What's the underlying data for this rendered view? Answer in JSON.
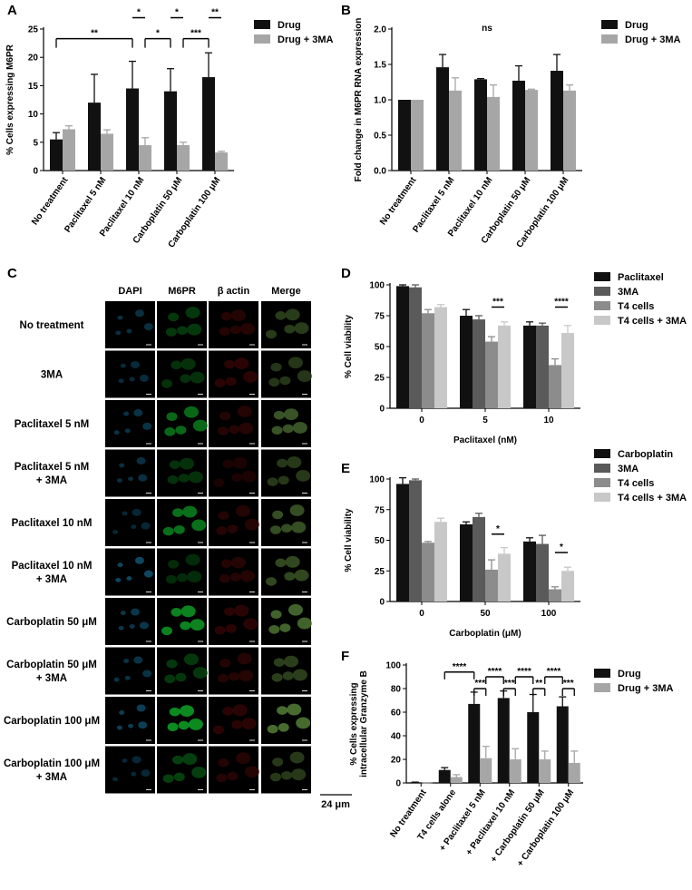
{
  "panel_letters": [
    "A",
    "B",
    "C",
    "D",
    "E",
    "F"
  ],
  "colors": {
    "drug": "#111111",
    "drug_3ma": "#a6a6a6",
    "paclitaxel": "#111111",
    "three_ma": "#5a5a5a",
    "t4": "#8c8c8c",
    "t4_3ma": "#c8c8c8"
  },
  "chart_data": [
    {
      "id": "A",
      "type": "bar",
      "ylabel": "% Cells expressing M6PR",
      "ylim": [
        0,
        25
      ],
      "yticks": [
        0,
        5,
        10,
        15,
        20,
        25
      ],
      "categories": [
        "No treatment",
        "Paclitaxel 5 nM",
        "Paclitaxel 10 nM",
        "Carboplatin 50 μM",
        "Carboplatin 100 μM"
      ],
      "series": [
        {
          "name": "Drug",
          "color": "#111111",
          "values": [
            5.5,
            12.0,
            14.5,
            14.0,
            16.5
          ],
          "errors": [
            1.2,
            5.0,
            4.8,
            4.0,
            4.3
          ]
        },
        {
          "name": "Drug + 3MA",
          "color": "#a6a6a6",
          "values": [
            7.3,
            6.5,
            4.5,
            4.5,
            3.2
          ],
          "errors": [
            0.6,
            0.7,
            1.3,
            0.5,
            0.2
          ]
        }
      ],
      "legend_position": "top-right",
      "significance": [
        {
          "label": "**",
          "from": [
            0,
            0
          ],
          "to": [
            2,
            0
          ],
          "y": 23.3
        },
        {
          "label": "*",
          "from": [
            2,
            0
          ],
          "to": [
            2,
            1
          ],
          "y": 27.0
        },
        {
          "label": "*",
          "from": [
            2,
            1
          ],
          "to": [
            3,
            0
          ],
          "y": 23.3
        },
        {
          "label": "*",
          "from": [
            3,
            0
          ],
          "to": [
            3,
            1
          ],
          "y": 27.0
        },
        {
          "label": "***",
          "from": [
            3,
            1
          ],
          "to": [
            4,
            0
          ],
          "y": 23.3
        },
        {
          "label": "**",
          "from": [
            4,
            0
          ],
          "to": [
            4,
            1
          ],
          "y": 27.0
        }
      ]
    },
    {
      "id": "B",
      "type": "bar",
      "ylabel": "Fold change in M6PR RNA expression",
      "ylim": [
        0,
        2.0
      ],
      "yticks": [
        0.0,
        0.5,
        1.0,
        1.5,
        2.0
      ],
      "categories": [
        "No treatment",
        "Paclitaxel 5 nM",
        "Paclitaxel 10 nM",
        "Carboplatin 50 μM",
        "Carboplatin 100 μM"
      ],
      "series": [
        {
          "name": "Drug",
          "color": "#111111",
          "values": [
            1.0,
            1.46,
            1.29,
            1.27,
            1.41
          ],
          "errors": [
            0.0,
            0.18,
            0.01,
            0.21,
            0.23
          ]
        },
        {
          "name": "Drug + 3MA",
          "color": "#a6a6a6",
          "values": [
            1.0,
            1.13,
            1.04,
            1.14,
            1.13
          ],
          "errors": [
            0.0,
            0.18,
            0.17,
            0.01,
            0.08
          ]
        }
      ],
      "legend_position": "top-right",
      "annotation": "ns"
    },
    {
      "id": "D",
      "type": "bar",
      "xlabel": "Paclitaxel (nM)",
      "ylabel": "% Cell viability",
      "ylim": [
        0,
        100
      ],
      "yticks": [
        0,
        25,
        50,
        75,
        100
      ],
      "categories": [
        "0",
        "5",
        "10"
      ],
      "series": [
        {
          "name": "Paclitaxel",
          "color": "#111111",
          "values": [
            99,
            75,
            67
          ],
          "errors": [
            1,
            5,
            3
          ]
        },
        {
          "name": "3MA",
          "color": "#5a5a5a",
          "values": [
            98,
            72,
            67
          ],
          "errors": [
            2,
            3,
            2
          ]
        },
        {
          "name": "T4 cells",
          "color": "#8c8c8c",
          "values": [
            77,
            54,
            35
          ],
          "errors": [
            3,
            4,
            5
          ]
        },
        {
          "name": "T4 cells + 3MA",
          "color": "#c8c8c8",
          "values": [
            82,
            67,
            61
          ],
          "errors": [
            2,
            3,
            6
          ]
        }
      ],
      "legend_position": "top-right",
      "significance": [
        {
          "label": "***",
          "from": [
            1,
            2
          ],
          "to": [
            1,
            3
          ],
          "y": 82
        },
        {
          "label": "****",
          "from": [
            2,
            2
          ],
          "to": [
            2,
            3
          ],
          "y": 82
        }
      ]
    },
    {
      "id": "E",
      "type": "bar",
      "xlabel": "Carboplatin (μM)",
      "ylabel": "% Cell viability",
      "ylim": [
        0,
        100
      ],
      "yticks": [
        0,
        25,
        50,
        75,
        100
      ],
      "categories": [
        "0",
        "50",
        "100"
      ],
      "series": [
        {
          "name": "Carboplatin",
          "color": "#111111",
          "values": [
            96,
            63,
            49
          ],
          "errors": [
            5,
            2,
            3
          ]
        },
        {
          "name": "3MA",
          "color": "#5a5a5a",
          "values": [
            99,
            69,
            47
          ],
          "errors": [
            1,
            3,
            7
          ]
        },
        {
          "name": "T4 cells",
          "color": "#8c8c8c",
          "values": [
            48,
            26,
            10
          ],
          "errors": [
            1,
            8,
            2
          ]
        },
        {
          "name": "T4 cells + 3MA",
          "color": "#c8c8c8",
          "values": [
            65,
            39,
            25
          ],
          "errors": [
            3,
            5,
            3
          ]
        }
      ],
      "legend_position": "top-right",
      "significance": [
        {
          "label": "*",
          "from": [
            1,
            2
          ],
          "to": [
            1,
            3
          ],
          "y": 55
        },
        {
          "label": "*",
          "from": [
            2,
            2
          ],
          "to": [
            2,
            3
          ],
          "y": 40
        }
      ]
    },
    {
      "id": "F",
      "type": "bar",
      "ylabel": "% Cells expressing intracellular Granzyme B",
      "ylabel_lines": [
        "% Cells expressing",
        "intracellular Granzyme B"
      ],
      "ylim": [
        0,
        100
      ],
      "yticks": [
        0,
        20,
        40,
        60,
        80,
        100
      ],
      "categories": [
        "No treatment",
        "T4 cells alone",
        "+ Paclitaxel 5 nM",
        "+ Paclitaxel 10 nM",
        "+ Carboplatin 50 μM",
        "+ Carboplatin 100 μM"
      ],
      "series": [
        {
          "name": "Drug",
          "color": "#111111",
          "values": [
            0.5,
            11,
            67,
            72,
            60,
            65
          ],
          "errors": [
            0.2,
            2,
            10,
            6,
            15,
            8
          ]
        },
        {
          "name": "Drug + 3MA",
          "color": "#a6a6a6",
          "values": [
            0.2,
            5,
            21,
            20,
            20,
            17
          ],
          "errors": [
            0.1,
            2,
            10,
            9,
            7,
            10
          ]
        }
      ],
      "legend_position": "top-right",
      "significance": [
        {
          "label": "****",
          "from": [
            1,
            0
          ],
          "to": [
            2,
            0
          ],
          "y": 94,
          "style": "bracket"
        },
        {
          "label": "****",
          "from": [
            2,
            1
          ],
          "to": [
            3,
            0
          ],
          "y": 90,
          "style": "bracket"
        },
        {
          "label": "****",
          "from": [
            3,
            1
          ],
          "to": [
            4,
            0
          ],
          "y": 90,
          "style": "bracket"
        },
        {
          "label": "****",
          "from": [
            4,
            1
          ],
          "to": [
            5,
            0
          ],
          "y": 90,
          "style": "bracket"
        },
        {
          "label": "***",
          "from": [
            2,
            0
          ],
          "to": [
            2,
            1
          ],
          "y": 80,
          "style": "bracket"
        },
        {
          "label": "***",
          "from": [
            3,
            0
          ],
          "to": [
            3,
            1
          ],
          "y": 80,
          "style": "bracket"
        },
        {
          "label": "**",
          "from": [
            4,
            0
          ],
          "to": [
            4,
            1
          ],
          "y": 80,
          "style": "bracket"
        },
        {
          "label": "***",
          "from": [
            5,
            0
          ],
          "to": [
            5,
            1
          ],
          "y": 80,
          "style": "bracket"
        }
      ]
    }
  ],
  "micrograph": {
    "columns": [
      "DAPI",
      "M6PR",
      "β actin",
      "Merge"
    ],
    "rows": [
      {
        "label": [
          "No treatment"
        ],
        "dapi": 0.5,
        "m6pr": 0.35,
        "actin": 0.3
      },
      {
        "label": [
          "3MA"
        ],
        "dapi": 0.45,
        "m6pr": 0.3,
        "actin": 0.35
      },
      {
        "label": [
          "Paclitaxel 5 nM"
        ],
        "dapi": 0.55,
        "m6pr": 0.7,
        "actin": 0.3
      },
      {
        "label": [
          "Paclitaxel 5 nM",
          "+ 3MA"
        ],
        "dapi": 0.5,
        "m6pr": 0.3,
        "actin": 0.2
      },
      {
        "label": [
          "Paclitaxel 10 nM"
        ],
        "dapi": 0.4,
        "m6pr": 0.75,
        "actin": 0.3
      },
      {
        "label": [
          "Paclitaxel 10 nM",
          "+ 3MA"
        ],
        "dapi": 0.8,
        "m6pr": 0.25,
        "actin": 0.3
      },
      {
        "label": [
          "Carboplatin 50 μM"
        ],
        "dapi": 0.6,
        "m6pr": 0.9,
        "actin": 0.35
      },
      {
        "label": [
          "Carboplatin 50 μM",
          "+ 3MA"
        ],
        "dapi": 0.55,
        "m6pr": 0.35,
        "actin": 0.3
      },
      {
        "label": [
          "Carboplatin 100 μM"
        ],
        "dapi": 0.7,
        "m6pr": 0.95,
        "actin": 0.35
      },
      {
        "label": [
          "Carboplatin 100 μM",
          "+ 3MA"
        ],
        "dapi": 0.4,
        "m6pr": 0.4,
        "actin": 0.3
      }
    ],
    "scale_bar": "24 μm"
  }
}
